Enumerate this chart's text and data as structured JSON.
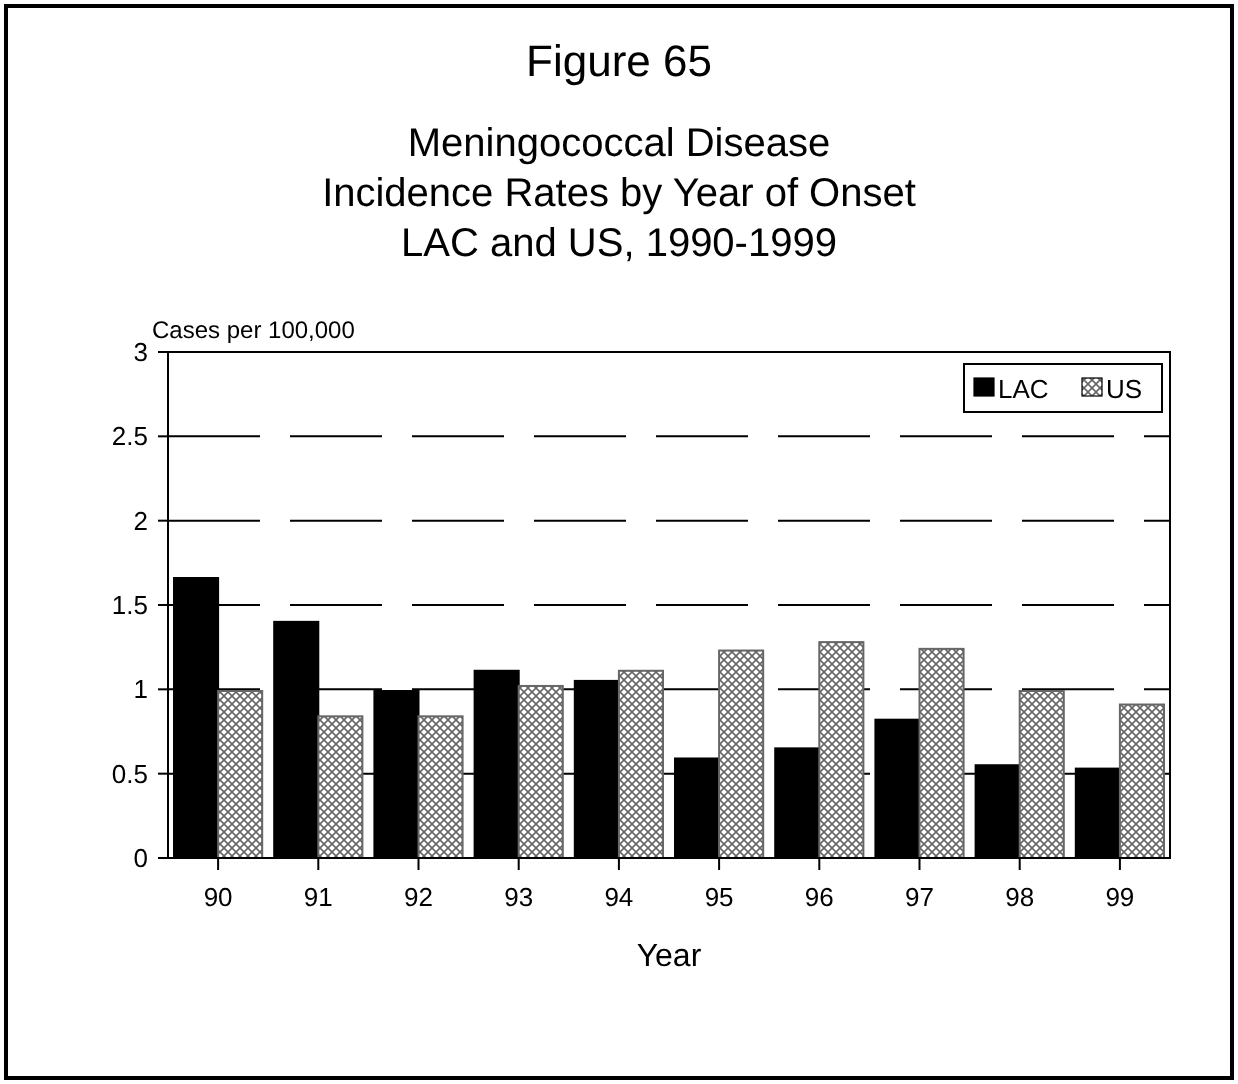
{
  "chart_data": {
    "type": "bar",
    "title": "Figure 65",
    "subtitle": "Meningococcal Disease\nIncidence Rates by Year of Onset\nLAC and US, 1990-1999",
    "xlabel": "Year",
    "ylabel": "Cases per 100,000",
    "categories": [
      "90",
      "91",
      "92",
      "93",
      "94",
      "95",
      "96",
      "97",
      "98",
      "99"
    ],
    "series": [
      {
        "name": "LAC",
        "color": "#000000",
        "values": [
          1.66,
          1.4,
          0.99,
          1.11,
          1.05,
          0.59,
          0.65,
          0.82,
          0.55,
          0.53
        ]
      },
      {
        "name": "US",
        "color": "#666666",
        "values": [
          0.99,
          0.84,
          0.84,
          1.02,
          1.11,
          1.23,
          1.28,
          1.24,
          0.99,
          0.91
        ]
      }
    ],
    "ylim": [
      0,
      3
    ],
    "yticks": [
      0,
      0.5,
      1,
      1.5,
      2,
      2.5,
      3
    ],
    "grid": "y",
    "legend": "top right"
  }
}
